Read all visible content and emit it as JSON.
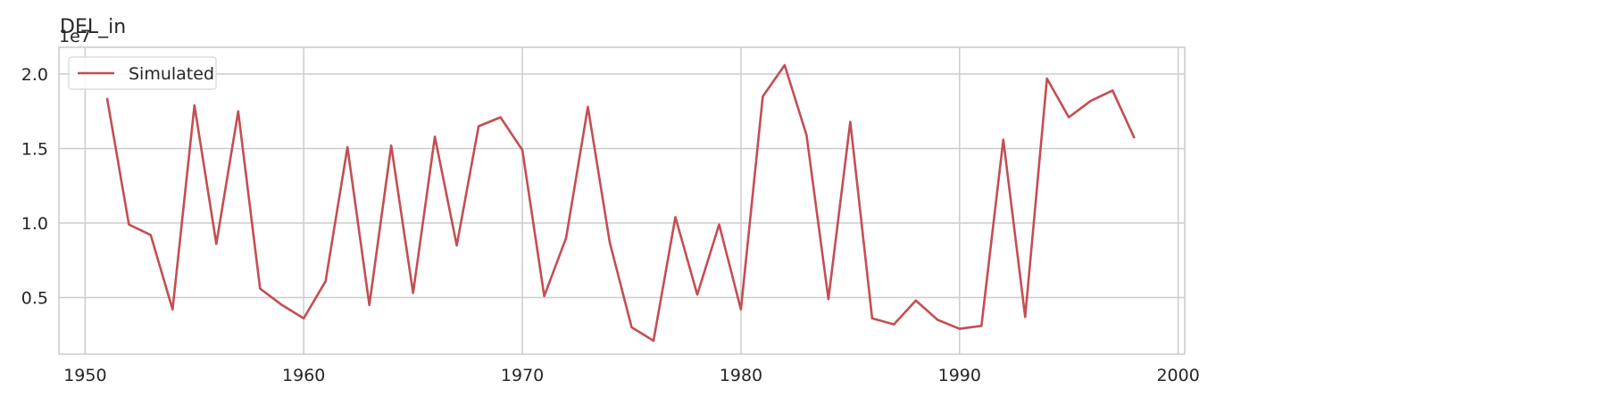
{
  "chart_data": {
    "type": "line",
    "title": "DEL_in",
    "xlabel": "",
    "ylabel": "",
    "y_offset_label": "1e7",
    "xlim": [
      1948.8,
      2000.3
    ],
    "ylim": [
      1200000,
      21800000
    ],
    "x_ticks": [
      1950,
      1960,
      1970,
      1980,
      1990,
      2000
    ],
    "x_tick_labels": [
      "1950",
      "1960",
      "1970",
      "1980",
      "1990",
      "2000"
    ],
    "y_ticks": [
      5000000,
      10000000,
      15000000,
      20000000
    ],
    "y_tick_labels": [
      "0.5",
      "1.0",
      "1.5",
      "2.0"
    ],
    "grid": true,
    "legend_position": "top-left",
    "series": [
      {
        "name": "Simulated",
        "color": "#c44e52",
        "x": [
          1951,
          1952,
          1953,
          1954,
          1955,
          1956,
          1957,
          1958,
          1959,
          1960,
          1961,
          1962,
          1963,
          1964,
          1965,
          1966,
          1967,
          1968,
          1969,
          1970,
          1971,
          1972,
          1973,
          1974,
          1975,
          1976,
          1977,
          1978,
          1979,
          1980,
          1981,
          1982,
          1983,
          1984,
          1985,
          1986,
          1987,
          1988,
          1989,
          1990,
          1991,
          1992,
          1993,
          1994,
          1995,
          1996,
          1997,
          1998
        ],
        "values": [
          18400000,
          9900000,
          9200000,
          4200000,
          17900000,
          8600000,
          17500000,
          5600000,
          4500000,
          3600000,
          6100000,
          15100000,
          4500000,
          15200000,
          5300000,
          15800000,
          8500000,
          16500000,
          17100000,
          14900000,
          5100000,
          9000000,
          17800000,
          8700000,
          3000000,
          2100000,
          10400000,
          5200000,
          9900000,
          4200000,
          18500000,
          20600000,
          15900000,
          4900000,
          16800000,
          3600000,
          3200000,
          4800000,
          3500000,
          2900000,
          3100000,
          15600000,
          3700000,
          19700000,
          17100000,
          18200000,
          18900000,
          15700000
        ]
      }
    ]
  }
}
